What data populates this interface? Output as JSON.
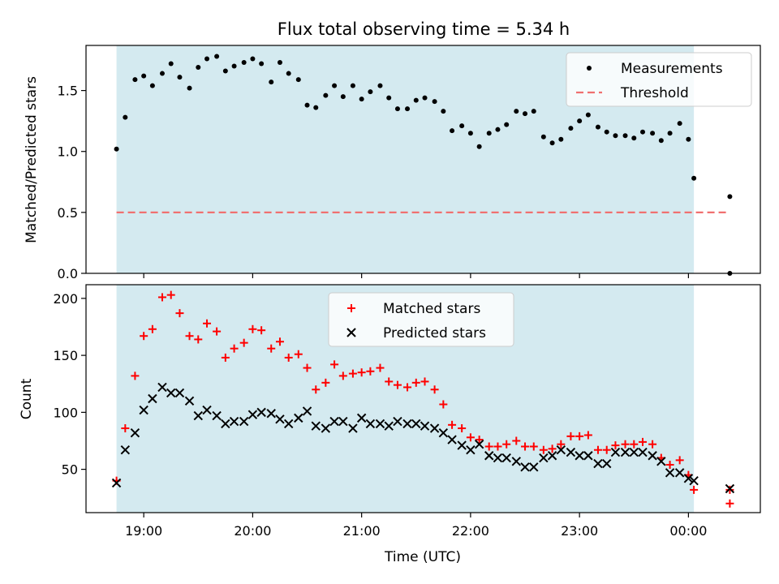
{
  "figure_title": "Flux total observing time = 5.34 h",
  "chart_data": [
    {
      "type": "scatter",
      "panel": "top",
      "ylabel": "Matched/Predicted stars",
      "xlabel": "",
      "xlim": [
        18.47,
        24.66
      ],
      "ylim": [
        0.0,
        1.87
      ],
      "yticks": [
        0.0,
        0.5,
        1.0,
        1.5
      ],
      "ytick_labels": [
        "0.0",
        "0.5",
        "1.0",
        "1.5"
      ],
      "xticks": [
        19,
        20,
        21,
        22,
        23,
        24
      ],
      "shaded_span": [
        18.75,
        24.05
      ],
      "shaded_color": "#d4eaf0",
      "legend_position": "upper right",
      "series": [
        {
          "name": "Measurements",
          "marker": "dot",
          "color": "#000000",
          "x": [
            18.75,
            18.83,
            18.92,
            19.0,
            19.08,
            19.17,
            19.25,
            19.33,
            19.42,
            19.5,
            19.58,
            19.67,
            19.75,
            19.83,
            19.92,
            20.0,
            20.08,
            20.17,
            20.25,
            20.33,
            20.42,
            20.5,
            20.58,
            20.67,
            20.75,
            20.83,
            20.92,
            21.0,
            21.08,
            21.17,
            21.25,
            21.33,
            21.42,
            21.5,
            21.58,
            21.67,
            21.75,
            21.83,
            21.92,
            22.0,
            22.08,
            22.17,
            22.25,
            22.33,
            22.42,
            22.5,
            22.58,
            22.67,
            22.75,
            22.83,
            22.92,
            23.0,
            23.08,
            23.17,
            23.25,
            23.33,
            23.42,
            23.5,
            23.58,
            23.67,
            23.75,
            23.83,
            23.92,
            24.0,
            24.05,
            24.38,
            24.38
          ],
          "y": [
            1.02,
            1.28,
            1.59,
            1.62,
            1.54,
            1.64,
            1.72,
            1.61,
            1.52,
            1.69,
            1.76,
            1.78,
            1.66,
            1.7,
            1.73,
            1.76,
            1.72,
            1.57,
            1.73,
            1.64,
            1.59,
            1.38,
            1.36,
            1.46,
            1.54,
            1.45,
            1.54,
            1.43,
            1.49,
            1.54,
            1.44,
            1.35,
            1.35,
            1.42,
            1.44,
            1.41,
            1.33,
            1.17,
            1.21,
            1.15,
            1.04,
            1.15,
            1.18,
            1.22,
            1.33,
            1.31,
            1.33,
            1.12,
            1.07,
            1.1,
            1.19,
            1.25,
            1.3,
            1.2,
            1.16,
            1.13,
            1.13,
            1.11,
            1.16,
            1.15,
            1.09,
            1.15,
            1.23,
            1.1,
            0.78,
            0.63,
            0.0
          ]
        },
        {
          "name": "Threshold",
          "marker": "dashed-line",
          "color": "#f07070",
          "x": [
            18.75,
            24.38
          ],
          "y": [
            0.5,
            0.5
          ]
        }
      ]
    },
    {
      "type": "scatter",
      "panel": "bottom",
      "ylabel": "Count",
      "xlabel": "Time (UTC)",
      "xlim": [
        18.47,
        24.66
      ],
      "ylim": [
        12,
        212
      ],
      "yticks": [
        50,
        100,
        150,
        200
      ],
      "ytick_labels": [
        "50",
        "100",
        "150",
        "200"
      ],
      "xticks": [
        19,
        20,
        21,
        22,
        23,
        24
      ],
      "xtick_labels": [
        "19:00",
        "20:00",
        "21:00",
        "22:00",
        "23:00",
        "00:00"
      ],
      "shaded_span": [
        18.75,
        24.05
      ],
      "shaded_color": "#d4eaf0",
      "legend_position": "upper center",
      "series": [
        {
          "name": "Matched stars",
          "marker": "plus",
          "color": "#ff0000",
          "x": [
            18.75,
            18.83,
            18.92,
            19.0,
            19.08,
            19.17,
            19.25,
            19.33,
            19.42,
            19.5,
            19.58,
            19.67,
            19.75,
            19.83,
            19.92,
            20.0,
            20.08,
            20.17,
            20.25,
            20.33,
            20.42,
            20.5,
            20.58,
            20.67,
            20.75,
            20.83,
            20.92,
            21.0,
            21.08,
            21.17,
            21.25,
            21.33,
            21.42,
            21.5,
            21.58,
            21.67,
            21.75,
            21.83,
            21.92,
            22.0,
            22.08,
            22.17,
            22.25,
            22.33,
            22.42,
            22.5,
            22.58,
            22.67,
            22.75,
            22.83,
            22.92,
            23.0,
            23.08,
            23.17,
            23.25,
            23.33,
            23.42,
            23.5,
            23.58,
            23.67,
            23.75,
            23.83,
            23.92,
            24.0,
            24.05,
            24.38,
            24.38
          ],
          "y": [
            40,
            86,
            132,
            167,
            173,
            201,
            203,
            187,
            167,
            164,
            178,
            171,
            148,
            156,
            161,
            173,
            172,
            156,
            162,
            148,
            151,
            139,
            120,
            126,
            142,
            132,
            134,
            135,
            136,
            139,
            127,
            124,
            122,
            126,
            127,
            120,
            107,
            89,
            86,
            78,
            76,
            70,
            70,
            72,
            75,
            70,
            70,
            67,
            68,
            72,
            79,
            79,
            80,
            67,
            67,
            71,
            72,
            72,
            74,
            72,
            60,
            54,
            58,
            45,
            32,
            32,
            20
          ]
        },
        {
          "name": "Predicted stars",
          "marker": "x",
          "color": "#000000",
          "x": [
            18.75,
            18.83,
            18.92,
            19.0,
            19.08,
            19.17,
            19.25,
            19.33,
            19.42,
            19.5,
            19.58,
            19.67,
            19.75,
            19.83,
            19.92,
            20.0,
            20.08,
            20.17,
            20.25,
            20.33,
            20.42,
            20.5,
            20.58,
            20.67,
            20.75,
            20.83,
            20.92,
            21.0,
            21.08,
            21.17,
            21.25,
            21.33,
            21.42,
            21.5,
            21.58,
            21.67,
            21.75,
            21.83,
            21.92,
            22.0,
            22.08,
            22.17,
            22.25,
            22.33,
            22.42,
            22.5,
            22.58,
            22.67,
            22.75,
            22.83,
            22.92,
            23.0,
            23.08,
            23.17,
            23.25,
            23.33,
            23.42,
            23.5,
            23.58,
            23.67,
            23.75,
            23.83,
            23.92,
            24.0,
            24.05,
            24.38
          ],
          "y": [
            38,
            67,
            82,
            102,
            112,
            122,
            117,
            117,
            110,
            97,
            102,
            97,
            90,
            92,
            92,
            98,
            100,
            99,
            94,
            90,
            95,
            101,
            88,
            86,
            92,
            92,
            86,
            95,
            90,
            90,
            88,
            92,
            90,
            90,
            88,
            86,
            82,
            76,
            71,
            67,
            72,
            62,
            60,
            60,
            57,
            52,
            52,
            60,
            62,
            67,
            65,
            62,
            62,
            55,
            55,
            65,
            65,
            65,
            65,
            62,
            57,
            47,
            47,
            42,
            40,
            33
          ]
        }
      ]
    }
  ]
}
